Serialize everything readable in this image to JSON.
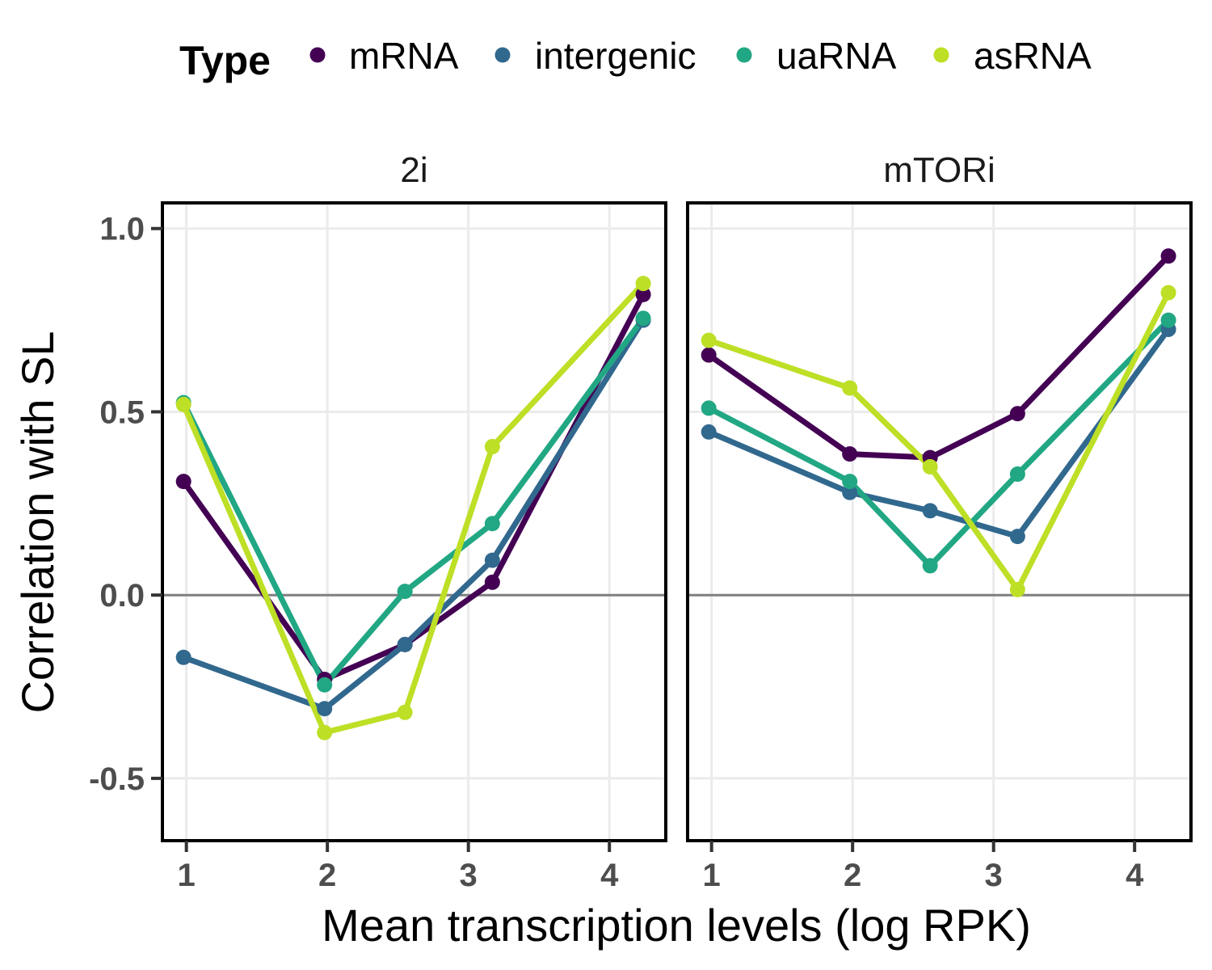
{
  "chart_data": {
    "type": "line",
    "facets": [
      "2i",
      "mTORi"
    ],
    "xlabel": "Mean transcription levels (log RPK)",
    "ylabel": "Correlation with SL",
    "xlim": [
      0.83,
      4.4
    ],
    "ylim": [
      -0.67,
      1.07
    ],
    "xticks": [
      1,
      2,
      3,
      4
    ],
    "xtick_labels": [
      "1",
      "2",
      "3",
      "4"
    ],
    "yticks": [
      -0.5,
      0.0,
      0.5,
      1.0
    ],
    "ytick_labels": [
      "-0.5",
      "0.0",
      "0.5",
      "1.0"
    ],
    "reference_line_y": 0,
    "grid": true,
    "legend": {
      "title": "Type",
      "position": "top",
      "entries": [
        "mRNA",
        "intergenic",
        "uaRNA",
        "asRNA"
      ]
    },
    "series": [
      {
        "name": "mRNA",
        "color": "#440154",
        "panels": {
          "2i": {
            "x": [
              0.98,
              1.98,
              2.55,
              3.17,
              4.24
            ],
            "y": [
              0.31,
              -0.23,
              -0.135,
              0.035,
              0.82
            ]
          },
          "mTORi": {
            "x": [
              0.98,
              1.98,
              2.55,
              3.17,
              4.24
            ],
            "y": [
              0.655,
              0.385,
              0.375,
              0.495,
              0.925
            ]
          }
        }
      },
      {
        "name": "intergenic",
        "color": "#31688E",
        "panels": {
          "2i": {
            "x": [
              0.98,
              1.98,
              2.55,
              3.17,
              4.24
            ],
            "y": [
              -0.17,
              -0.31,
              -0.135,
              0.095,
              0.75
            ]
          },
          "mTORi": {
            "x": [
              0.98,
              1.98,
              2.55,
              3.17,
              4.24
            ],
            "y": [
              0.445,
              0.28,
              0.23,
              0.16,
              0.725
            ]
          }
        }
      },
      {
        "name": "uaRNA",
        "color": "#21A783",
        "panels": {
          "2i": {
            "x": [
              0.98,
              1.98,
              2.55,
              3.17,
              4.24
            ],
            "y": [
              0.525,
              -0.245,
              0.01,
              0.195,
              0.755
            ]
          },
          "mTORi": {
            "x": [
              0.98,
              1.98,
              2.55,
              3.17,
              4.24
            ],
            "y": [
              0.51,
              0.31,
              0.08,
              0.33,
              0.75
            ]
          }
        }
      },
      {
        "name": "asRNA",
        "color": "#BDDF26",
        "panels": {
          "2i": {
            "x": [
              0.98,
              1.98,
              2.55,
              3.17,
              4.24
            ],
            "y": [
              0.52,
              -0.375,
              -0.32,
              0.405,
              0.85
            ]
          },
          "mTORi": {
            "x": [
              0.98,
              1.98,
              2.55,
              3.17,
              4.24
            ],
            "y": [
              0.695,
              0.565,
              0.35,
              0.015,
              0.825
            ]
          }
        }
      }
    ]
  }
}
